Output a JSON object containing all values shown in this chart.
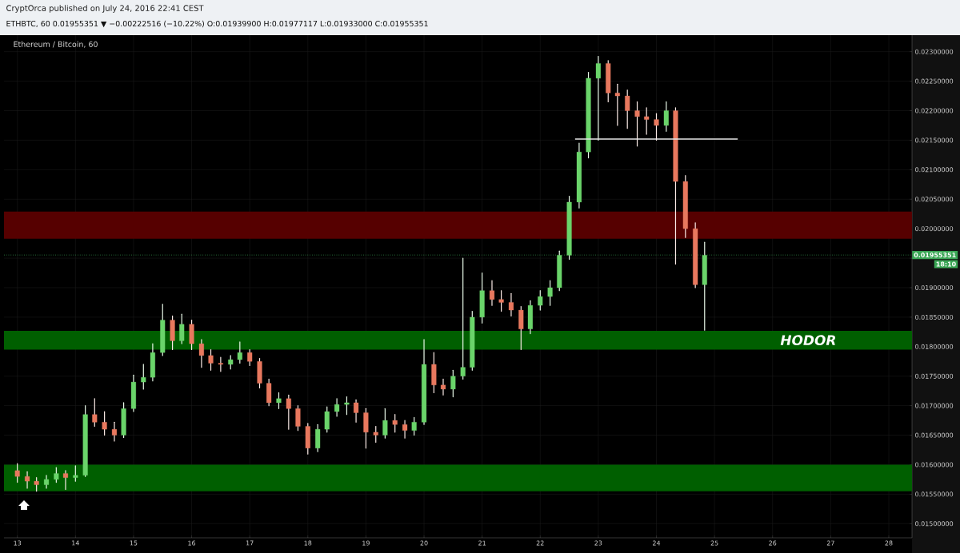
{
  "chart_data": {
    "type": "candlestick",
    "title": "Ethereum / Bitcoin, 60",
    "annotations": [
      "CryptOrca published on July 24, 2016 22:41 CEST",
      "ETHBTC, 60  0.01955351 ▼ −0.00222516 (−10.22%)  O:0.01939900 H:0.01977117 L:0.01933000 C:0.01955351",
      "18:10"
    ],
    "x": [
      13,
      13.17,
      13.33,
      13.5,
      13.67,
      13.83,
      14,
      14.17,
      14.33,
      14.5,
      14.67,
      14.83,
      15,
      15.17,
      15.33,
      15.5,
      15.67,
      15.83,
      16,
      16.17,
      16.33,
      16.5,
      16.67,
      16.83,
      17,
      17.17,
      17.33,
      17.5,
      17.67,
      17.83,
      18,
      18.17,
      18.33,
      18.5,
      18.67,
      18.83,
      19,
      19.17,
      19.33,
      19.5,
      19.67,
      19.83,
      20,
      20.17,
      20.33,
      20.5,
      20.67,
      20.83,
      21,
      21.17,
      21.33,
      21.5,
      21.67,
      21.83,
      22,
      22.17,
      22.33,
      22.5,
      22.67,
      22.83,
      23,
      23.17,
      23.33,
      23.5,
      23.67,
      23.83,
      24,
      24.17,
      24.33,
      24.5,
      24.67,
      24.83
    ],
    "ohlc": [
      [
        0.0159,
        0.01602,
        0.0157,
        0.0158
      ],
      [
        0.0158,
        0.01588,
        0.0156,
        0.01572
      ],
      [
        0.01572,
        0.01578,
        0.01555,
        0.01566
      ],
      [
        0.01566,
        0.01582,
        0.0156,
        0.01575
      ],
      [
        0.01575,
        0.01595,
        0.0157,
        0.01585
      ],
      [
        0.01585,
        0.0159,
        0.01558,
        0.01578
      ],
      [
        0.01578,
        0.01598,
        0.01572,
        0.01582
      ],
      [
        0.01582,
        0.017,
        0.0158,
        0.01685
      ],
      [
        0.01685,
        0.01712,
        0.01665,
        0.01672
      ],
      [
        0.01672,
        0.0169,
        0.0165,
        0.0166
      ],
      [
        0.0166,
        0.01672,
        0.0164,
        0.0165
      ],
      [
        0.0165,
        0.01705,
        0.01646,
        0.01695
      ],
      [
        0.01695,
        0.01752,
        0.0169,
        0.0174
      ],
      [
        0.0174,
        0.0177,
        0.01728,
        0.01748
      ],
      [
        0.01748,
        0.01805,
        0.01742,
        0.0179
      ],
      [
        0.0179,
        0.01872,
        0.01785,
        0.01845
      ],
      [
        0.01845,
        0.01852,
        0.01795,
        0.0181
      ],
      [
        0.0181,
        0.01855,
        0.01805,
        0.01838
      ],
      [
        0.01838,
        0.01845,
        0.01795,
        0.01805
      ],
      [
        0.01805,
        0.01812,
        0.01765,
        0.01785
      ],
      [
        0.01785,
        0.01795,
        0.0176,
        0.01772
      ],
      [
        0.01772,
        0.01782,
        0.01758,
        0.0177
      ],
      [
        0.0177,
        0.01785,
        0.01762,
        0.01778
      ],
      [
        0.01778,
        0.01808,
        0.01772,
        0.0179
      ],
      [
        0.0179,
        0.01795,
        0.01768,
        0.01775
      ],
      [
        0.01775,
        0.0178,
        0.0173,
        0.01738
      ],
      [
        0.01738,
        0.01745,
        0.017,
        0.01705
      ],
      [
        0.01705,
        0.01722,
        0.01695,
        0.01712
      ],
      [
        0.01712,
        0.01718,
        0.0166,
        0.01695
      ],
      [
        0.01695,
        0.017,
        0.01658,
        0.01665
      ],
      [
        0.01665,
        0.0167,
        0.01618,
        0.01628
      ],
      [
        0.01628,
        0.01668,
        0.01622,
        0.0166
      ],
      [
        0.0166,
        0.01698,
        0.01655,
        0.0169
      ],
      [
        0.0169,
        0.01712,
        0.01682,
        0.01702
      ],
      [
        0.01702,
        0.01715,
        0.01685,
        0.01705
      ],
      [
        0.01705,
        0.0171,
        0.01672,
        0.01688
      ],
      [
        0.01688,
        0.01695,
        0.01628,
        0.01655
      ],
      [
        0.01655,
        0.01665,
        0.01638,
        0.0165
      ],
      [
        0.0165,
        0.01695,
        0.01645,
        0.01675
      ],
      [
        0.01675,
        0.01685,
        0.01655,
        0.01668
      ],
      [
        0.01668,
        0.01675,
        0.01645,
        0.01658
      ],
      [
        0.01658,
        0.0168,
        0.0165,
        0.01672
      ],
      [
        0.01672,
        0.01812,
        0.01668,
        0.0177
      ],
      [
        0.0177,
        0.0179,
        0.01722,
        0.01735
      ],
      [
        0.01735,
        0.01745,
        0.01718,
        0.01728
      ],
      [
        0.01728,
        0.0176,
        0.01715,
        0.0175
      ],
      [
        0.0175,
        0.0195,
        0.01745,
        0.01765
      ],
      [
        0.01765,
        0.0186,
        0.0176,
        0.0185
      ],
      [
        0.0185,
        0.01925,
        0.0184,
        0.01895
      ],
      [
        0.01895,
        0.01912,
        0.0187,
        0.0188
      ],
      [
        0.0188,
        0.01895,
        0.0186,
        0.01875
      ],
      [
        0.01875,
        0.0189,
        0.01852,
        0.01862
      ],
      [
        0.01862,
        0.01868,
        0.01795,
        0.0183
      ],
      [
        0.0183,
        0.01878,
        0.01822,
        0.0187
      ],
      [
        0.0187,
        0.01895,
        0.01862,
        0.01885
      ],
      [
        0.01885,
        0.01912,
        0.0187,
        0.019
      ],
      [
        0.019,
        0.01962,
        0.01895,
        0.01955
      ],
      [
        0.01955,
        0.02055,
        0.01948,
        0.02045
      ],
      [
        0.02045,
        0.02145,
        0.02035,
        0.0213
      ],
      [
        0.0213,
        0.02265,
        0.0212,
        0.02255
      ],
      [
        0.02255,
        0.02292,
        0.0215,
        0.0228
      ],
      [
        0.0228,
        0.02285,
        0.02215,
        0.0223
      ],
      [
        0.0223,
        0.02245,
        0.02175,
        0.02225
      ],
      [
        0.02225,
        0.02235,
        0.0217,
        0.022
      ],
      [
        0.022,
        0.02215,
        0.0214,
        0.0219
      ],
      [
        0.0219,
        0.02205,
        0.0216,
        0.02185
      ],
      [
        0.02185,
        0.02195,
        0.0215,
        0.02175
      ],
      [
        0.02175,
        0.02215,
        0.02165,
        0.022
      ],
      [
        0.022,
        0.02205,
        0.0194,
        0.0208
      ],
      [
        0.0208,
        0.0209,
        0.01985,
        0.02
      ],
      [
        0.02,
        0.0201,
        0.019,
        0.01905
      ],
      [
        0.01905,
        0.01977,
        0.01828,
        0.01955
      ]
    ],
    "colors": [
      "#e8785e",
      "#e8785e",
      "#e8785e",
      "#6ad46a",
      "#6ad46a",
      "#e8785e",
      "#6ad46a",
      "#6ad46a",
      "#e8785e",
      "#e8785e",
      "#e8785e",
      "#6ad46a",
      "#6ad46a",
      "#6ad46a",
      "#6ad46a",
      "#6ad46a",
      "#e8785e",
      "#6ad46a",
      "#e8785e",
      "#e8785e",
      "#e8785e",
      "#e8785e",
      "#6ad46a",
      "#6ad46a",
      "#e8785e",
      "#e8785e",
      "#e8785e",
      "#6ad46a",
      "#e8785e",
      "#e8785e",
      "#e8785e",
      "#6ad46a",
      "#6ad46a",
      "#6ad46a",
      "#6ad46a",
      "#e8785e",
      "#e8785e",
      "#e8785e",
      "#6ad46a",
      "#e8785e",
      "#e8785e",
      "#6ad46a",
      "#6ad46a",
      "#e8785e",
      "#e8785e",
      "#6ad46a",
      "#6ad46a",
      "#6ad46a",
      "#6ad46a",
      "#e8785e",
      "#e8785e",
      "#e8785e",
      "#e8785e",
      "#6ad46a",
      "#6ad46a",
      "#6ad46a",
      "#6ad46a",
      "#6ad46a",
      "#6ad46a",
      "#6ad46a",
      "#6ad46a",
      "#e8785e",
      "#e8785e",
      "#e8785e",
      "#e8785e",
      "#e8785e",
      "#e8785e",
      "#6ad46a",
      "#e8785e",
      "#e8785e",
      "#e8785e",
      "#6ad46a"
    ],
    "series": [
      {
        "type": "line",
        "x": [
          22.6,
          25.4
        ],
        "values": [
          0.02152,
          0.02152
        ],
        "color": "#e6e6e6"
      }
    ],
    "bands": [
      {
        "axis": "y",
        "from": 0.01555,
        "to": 0.016,
        "color": "#005f00"
      },
      {
        "axis": "y",
        "from": 0.01795,
        "to": 0.01827,
        "color": "#005f00",
        "label": "HODOR"
      },
      {
        "axis": "y",
        "from": 0.01983,
        "to": 0.02029,
        "color": "#560000"
      }
    ],
    "ref_lines": [
      {
        "axis": "y",
        "value": 0.01955351,
        "label": "0.01955351",
        "color": "#3aa655",
        "line_style": "dotted"
      }
    ],
    "xlim": [
      12.77,
      28.4
    ],
    "ylim": [
      0.01476,
      0.02328
    ],
    "xticks": [
      13,
      14,
      15,
      16,
      17,
      18,
      19,
      20,
      21,
      22,
      23,
      24,
      25,
      26,
      27,
      28
    ],
    "yticks": [
      {
        "value": 0.015,
        "label": "0.01500000"
      },
      {
        "value": 0.0155,
        "label": "0.01550000"
      },
      {
        "value": 0.016,
        "label": "0.01600000"
      },
      {
        "value": 0.0165,
        "label": "0.01650000"
      },
      {
        "value": 0.017,
        "label": "0.01700000"
      },
      {
        "value": 0.0175,
        "label": "0.01750000"
      },
      {
        "value": 0.018,
        "label": "0.01800000"
      },
      {
        "value": 0.0185,
        "label": "0.01850000"
      },
      {
        "value": 0.019,
        "label": "0.01900000"
      },
      {
        "value": 0.0195,
        "label": null
      },
      {
        "value": 0.02,
        "label": "0.02000000"
      },
      {
        "value": 0.0205,
        "label": "0.02050000"
      },
      {
        "value": 0.021,
        "label": "0.02100000"
      },
      {
        "value": 0.0215,
        "label": "0.02150000"
      },
      {
        "value": 0.022,
        "label": "0.02200000"
      },
      {
        "value": 0.0225,
        "label": "0.02250000"
      },
      {
        "value": 0.023,
        "label": "0.02300000"
      }
    ],
    "grid": true
  }
}
